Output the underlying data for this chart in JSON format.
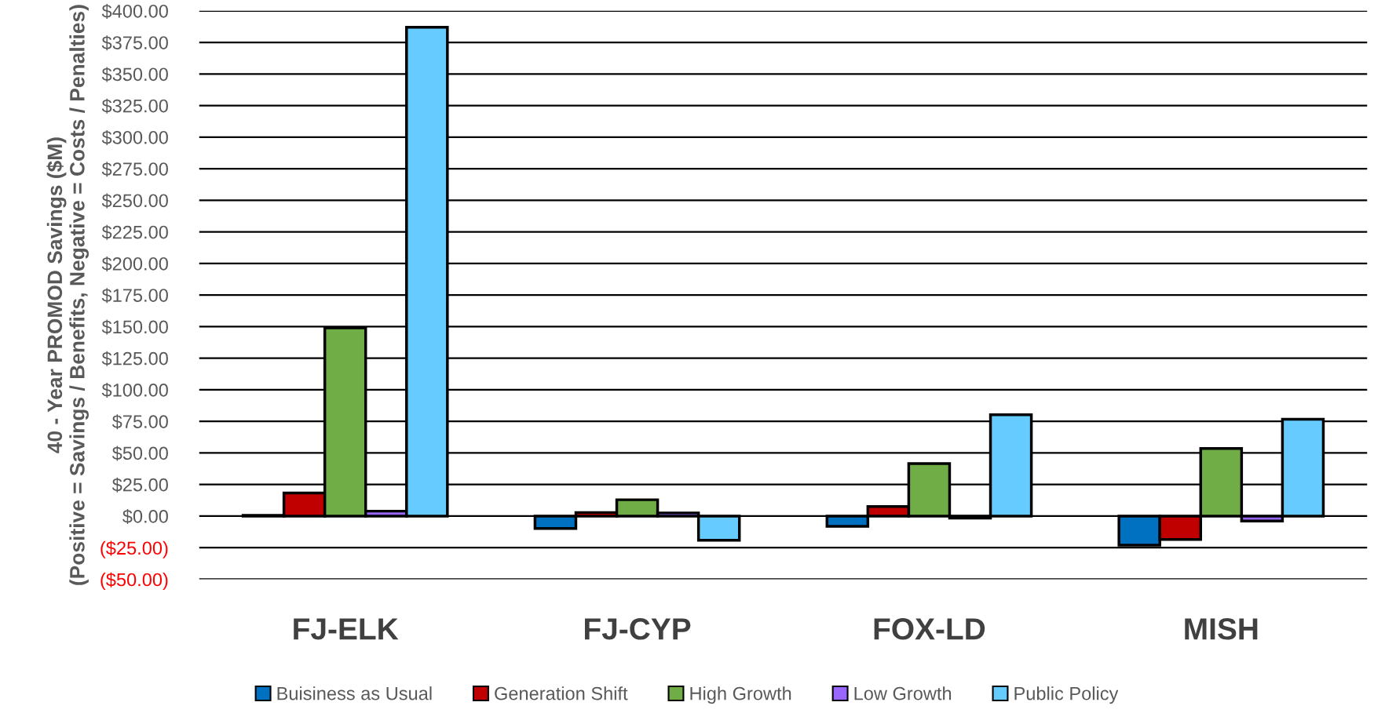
{
  "chart_data": {
    "type": "bar",
    "ylabel": "40 - Year PROMOD Savings ($M)\n(Positive = Savings / Benefits, Negative = Costs / Penalties)",
    "categories": [
      "FJ-ELK",
      "FJ-CYP",
      "FOX-LD",
      "MISH"
    ],
    "series": [
      {
        "name": "Buisiness as Usual",
        "color": "#0070c0",
        "values": [
          0.5,
          -9.8,
          -8.1,
          -23
        ]
      },
      {
        "name": "Generation Shift",
        "color": "#c00000",
        "values": [
          18.3,
          2.8,
          7.6,
          -18.6
        ]
      },
      {
        "name": "High Growth",
        "color": "#70ad47",
        "values": [
          149,
          12.9,
          41.6,
          53.5
        ]
      },
      {
        "name": "Low Growth",
        "color": "#9966ff",
        "values": [
          3.9,
          2.5,
          -1.7,
          -4
        ]
      },
      {
        "name": "Public Policy",
        "color": "#66ccff",
        "values": [
          387,
          -19.1,
          80.2,
          76.7
        ]
      }
    ],
    "ylim": [
      -50,
      400
    ],
    "yticks": [
      {
        "value": -50,
        "label": "($50.00)"
      },
      {
        "value": -25,
        "label": "($25.00)"
      },
      {
        "value": 0,
        "label": "$0.00"
      },
      {
        "value": 25,
        "label": "$25.00"
      },
      {
        "value": 50,
        "label": "$50.00"
      },
      {
        "value": 75,
        "label": "$75.00"
      },
      {
        "value": 100,
        "label": "$100.00"
      },
      {
        "value": 125,
        "label": "$125.00"
      },
      {
        "value": 150,
        "label": "$150.00"
      },
      {
        "value": 175,
        "label": "$175.00"
      },
      {
        "value": 200,
        "label": "$200.00"
      },
      {
        "value": 225,
        "label": "$225.00"
      },
      {
        "value": 250,
        "label": "$250.00"
      },
      {
        "value": 275,
        "label": "$275.00"
      },
      {
        "value": 300,
        "label": "$300.00"
      },
      {
        "value": 325,
        "label": "$325.00"
      },
      {
        "value": 350,
        "label": "$350.00"
      },
      {
        "value": 375,
        "label": "$375.00"
      },
      {
        "value": 400,
        "label": "$400.00"
      }
    ],
    "grid": "y",
    "legend": "bottom"
  }
}
